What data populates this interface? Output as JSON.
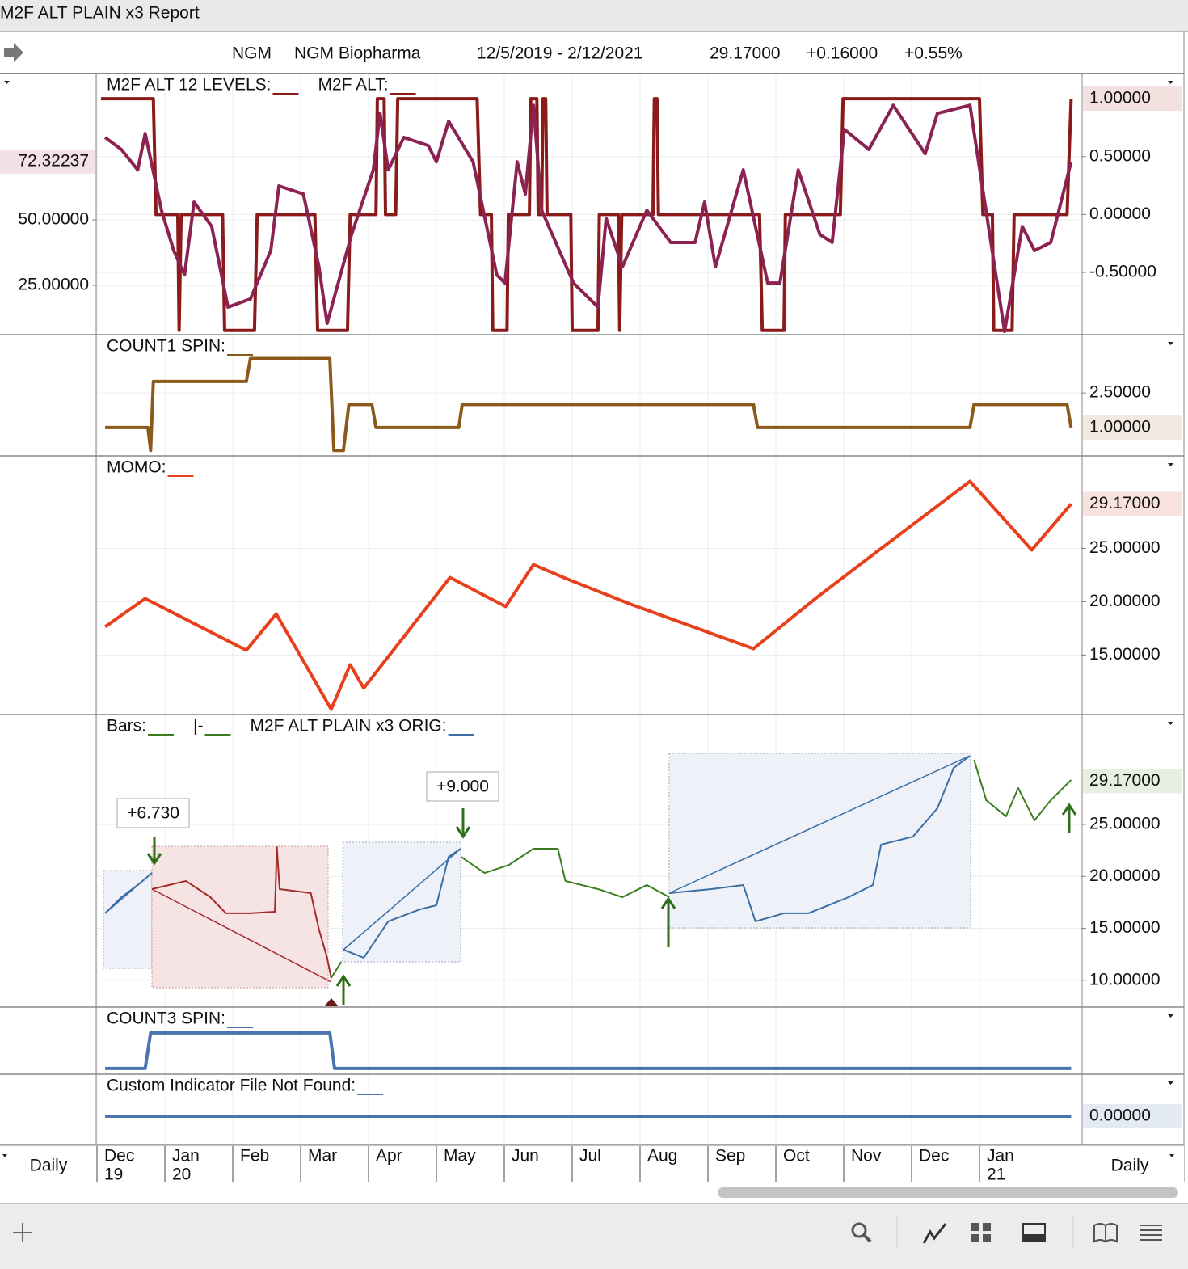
{
  "window": {
    "title": "M2F ALT PLAIN x3 Report"
  },
  "header": {
    "symbol": "NGM",
    "name": "NGM Biopharma",
    "range": "12/5/2019 - 2/12/2021",
    "last": "29.17000",
    "change": "+0.16000",
    "change_pct": "+0.55%"
  },
  "xaxis": {
    "xlim": [
      0,
      14.5
    ],
    "xticks": [
      {
        "value": 0,
        "label": "Dec",
        "year": "19"
      },
      {
        "value": 1,
        "label": "Jan",
        "year": "20"
      },
      {
        "value": 2,
        "label": "Feb"
      },
      {
        "value": 3,
        "label": "Mar"
      },
      {
        "value": 4,
        "label": "Apr"
      },
      {
        "value": 5,
        "label": "May"
      },
      {
        "value": 6,
        "label": "Jun"
      },
      {
        "value": 7,
        "label": "Jul"
      },
      {
        "value": 8,
        "label": "Aug"
      },
      {
        "value": 9,
        "label": "Sep"
      },
      {
        "value": 10,
        "label": "Oct"
      },
      {
        "value": 11,
        "label": "Nov"
      },
      {
        "value": 12,
        "label": "Dec"
      },
      {
        "value": 13,
        "label": "Jan",
        "year": "21"
      }
    ],
    "period_left": "Daily",
    "period_right": "Daily"
  },
  "panels": [
    {
      "labels": [
        {
          "text": "M2F ALT 12 LEVELS:",
          "color": "#8b1a1a"
        },
        {
          "text": "M2F ALT:",
          "color": "#8b1a1a"
        }
      ],
      "ylim": [
        -1.03,
        1.21
      ],
      "yticks": [
        {
          "value": 0.5,
          "label": "0.50000"
        },
        {
          "value": 0,
          "label": "0.00000"
        },
        {
          "value": -0.5,
          "label": "-0.50000"
        }
      ],
      "marker": {
        "value": 1,
        "label": "1.00000",
        "color": "#8b1a1a",
        "background": "#f3e1df"
      },
      "ylim_left": [
        6.5,
        105.6
      ],
      "yticks_left": [
        {
          "value": 50,
          "label": "50.00000"
        },
        {
          "value": 25,
          "label": "25.00000"
        }
      ],
      "marker_left": {
        "value": 72.32237,
        "label": "72.32237",
        "color": "#8b2252",
        "background": "#f3e1e6"
      },
      "series": [
        {
          "color": "#8b1a1a",
          "axis": "right",
          "x": [
            0.06,
            0.83,
            0.87,
            1.19,
            1.21,
            1.24,
            1.85,
            1.88,
            2.32,
            2.36,
            3.21,
            3.25,
            3.69,
            3.73,
            4.11,
            4.13,
            4.23,
            4.25,
            4.4,
            4.43,
            5.6,
            5.65,
            5.81,
            5.83,
            6.04,
            6.06,
            6.37,
            6.39,
            6.48,
            6.5,
            6.55,
            6.57,
            6.61,
            6.63,
            6.98,
            7.0,
            7.38,
            7.4,
            7.68,
            7.7,
            7.73,
            8.19,
            8.21,
            8.25,
            8.27,
            9.76,
            9.8,
            10.12,
            10.14,
            10.95,
            10.99,
            13.0,
            13.05,
            13.19,
            13.21,
            13.48,
            13.51,
            14.29,
            14.35
          ],
          "values": [
            1,
            1,
            0,
            0,
            -1,
            0,
            0,
            -1,
            -1,
            0,
            0,
            -1,
            -1,
            0,
            0,
            1,
            1,
            0,
            0,
            1,
            1,
            0,
            0,
            -1,
            -1,
            0,
            0,
            1,
            1,
            0,
            0,
            1,
            1,
            0,
            0,
            -1,
            -1,
            0,
            0,
            -1,
            0,
            0,
            1,
            1,
            0,
            0,
            -1,
            -1,
            0,
            0,
            1,
            1,
            0,
            0,
            -1,
            -1,
            0,
            0,
            1
          ]
        },
        {
          "color": "#8b2252",
          "axis": "left",
          "x": [
            0.12,
            0.36,
            0.6,
            0.71,
            0.95,
            1.13,
            1.29,
            1.43,
            1.69,
            1.93,
            2.26,
            2.56,
            2.68,
            3.04,
            3.27,
            3.39,
            3.75,
            4.07,
            4.17,
            4.29,
            4.52,
            4.88,
            5.0,
            5.18,
            5.54,
            5.89,
            6.01,
            6.19,
            6.31,
            6.43,
            6.55,
            7.02,
            7.38,
            7.5,
            7.74,
            8.1,
            8.45,
            8.81,
            8.95,
            9.11,
            9.52,
            9.88,
            10.06,
            10.33,
            10.65,
            10.83,
            11.01,
            11.37,
            11.73,
            12.2,
            12.38,
            12.86,
            13.04,
            13.37,
            13.63,
            13.81,
            14.05,
            14.35
          ],
          "values": [
            81.5,
            76.9,
            69.1,
            83.0,
            53.7,
            38.3,
            29.0,
            56.8,
            47.5,
            16.7,
            19.8,
            38.3,
            63.0,
            59.9,
            32.1,
            10.5,
            44.4,
            69.1,
            90.7,
            69.1,
            81.5,
            78.4,
            72.2,
            87.7,
            72.2,
            29.0,
            25.9,
            72.2,
            59.9,
            93.8,
            53.7,
            25.9,
            16.7,
            50.6,
            32.1,
            53.7,
            41.4,
            41.4,
            56.8,
            32.1,
            69.1,
            25.9,
            25.9,
            69.1,
            44.4,
            41.4,
            84.6,
            76.9,
            93.8,
            75.3,
            90.7,
            93.8,
            63.0,
            7.4,
            47.5,
            38.3,
            41.4,
            72.2
          ]
        }
      ]
    },
    {
      "labels": [
        {
          "text": "COUNT1 SPIN:",
          "color": "#8b5a1a"
        }
      ],
      "ylim": [
        -0.2,
        5
      ],
      "yticks": [
        {
          "value": 2.5,
          "label": "2.50000"
        }
      ],
      "marker": {
        "value": 1,
        "label": "1.00000",
        "color": "#8b5a1a",
        "background": "#f2e9e0"
      },
      "series": [
        {
          "color": "#8b5a1a",
          "axis": "right",
          "x": [
            0.12,
            0.75,
            0.79,
            0.83,
            2.2,
            2.26,
            3.43,
            3.49,
            3.63,
            3.71,
            4.05,
            4.11,
            5.33,
            5.38,
            9.67,
            9.73,
            12.86,
            12.92,
            14.29,
            14.35
          ],
          "values": [
            1,
            1,
            0,
            3,
            3,
            4,
            4,
            0,
            0,
            2,
            2,
            1,
            1,
            2,
            2,
            1,
            1,
            2,
            2,
            1
          ]
        }
      ]
    },
    {
      "labels": [
        {
          "text": "MOMO:",
          "color": "#e8401c"
        }
      ],
      "ylim": [
        9.5,
        33.6
      ],
      "yticks": [
        {
          "value": 25,
          "label": "25.00000"
        },
        {
          "value": 20,
          "label": "20.00000"
        },
        {
          "value": 15,
          "label": "15.00000"
        }
      ],
      "marker": {
        "value": 29.17,
        "label": "29.17000",
        "color": "#d8391a",
        "background": "#f8e2de"
      },
      "series": [
        {
          "color": "#e8401c",
          "axis": "right",
          "x": [
            0.12,
            0.71,
            2.2,
            2.64,
            3.45,
            3.73,
            3.93,
            5.2,
            6.02,
            6.43,
            6.9,
            7.86,
            9.67,
            10.6,
            11.49,
            12.86,
            13.77,
            14.35
          ],
          "values": [
            17.65,
            20.3,
            15.45,
            18.86,
            9.92,
            14.09,
            11.9,
            22.27,
            19.55,
            23.48,
            22.2,
            19.77,
            15.6,
            20.38,
            24.7,
            31.29,
            24.85,
            29.17
          ]
        }
      ]
    },
    {
      "labels": [
        {
          "text": "Bars:",
          "color": "#3a7d1e"
        },
        {
          "text": "|-",
          "color": "#3a7d1e"
        },
        {
          "text": "M2F ALT PLAIN x3 ORIG:",
          "color": "#3a6ea5"
        }
      ],
      "ylim": [
        7.5,
        35.5
      ],
      "yticks": [
        {
          "value": 25,
          "label": "25.00000"
        },
        {
          "value": 20,
          "label": "20.00000"
        },
        {
          "value": 15,
          "label": "15.00000"
        },
        {
          "value": 10,
          "label": "10.00000"
        }
      ],
      "marker": {
        "value": 29.17,
        "label": "29.17000",
        "color": "#3a7d1e",
        "background": "#e6efe0"
      },
      "annotations": [
        {
          "text": "+6.730"
        },
        {
          "text": "+9.000"
        }
      ],
      "series": [
        {
          "color": "#3a6ea5",
          "axis": "right",
          "x": [
            0.12,
            0.36,
            0.6,
            0.81
          ],
          "values": [
            16.45,
            18.0,
            19.17,
            20.33
          ]
        },
        {
          "color": "#a52a2a",
          "axis": "right",
          "x": [
            0.81,
            1.31,
            1.67,
            1.9,
            2.26,
            2.62,
            2.65,
            2.69,
            3.15,
            3.27,
            3.39,
            3.45
          ],
          "values": [
            18.78,
            19.56,
            18.0,
            16.45,
            16.45,
            16.6,
            22.82,
            18.78,
            18.39,
            14.89,
            12.17,
            10.23
          ]
        },
        {
          "color": "#3a7d1e",
          "axis": "right",
          "x": [
            3.45,
            3.6
          ],
          "values": [
            10.23,
            11.78
          ]
        },
        {
          "color": "#3a6ea5",
          "axis": "right",
          "x": [
            3.63,
            3.93,
            4.29,
            4.76,
            5.0,
            5.18,
            5.36
          ],
          "values": [
            12.95,
            12.17,
            15.67,
            16.84,
            17.22,
            21.89,
            22.67
          ]
        },
        {
          "color": "#3a7d1e",
          "axis": "right",
          "x": [
            5.36,
            5.71,
            6.07,
            6.43,
            6.79,
            6.9,
            7.38,
            7.74,
            8.1,
            8.43
          ],
          "values": [
            21.89,
            20.33,
            21.11,
            22.67,
            22.67,
            19.56,
            18.78,
            18.0,
            19.17,
            18.0
          ]
        },
        {
          "color": "#3a6ea5",
          "axis": "right",
          "x": [
            8.43,
            9.05,
            9.52,
            9.7,
            10.12,
            10.48,
            11.07,
            11.43,
            11.55,
            12.02,
            12.38,
            12.62,
            12.86
          ],
          "values": [
            18.39,
            18.78,
            19.17,
            15.67,
            16.45,
            16.45,
            18.0,
            19.17,
            23.06,
            23.83,
            26.56,
            30.44,
            31.61
          ]
        },
        {
          "color": "#3a7d1e",
          "axis": "right",
          "x": [
            12.92,
            13.1,
            13.39,
            13.57,
            13.81,
            14.05,
            14.35
          ],
          "values": [
            31.22,
            27.33,
            25.78,
            28.5,
            25.39,
            27.33,
            29.28
          ]
        }
      ]
    },
    {
      "labels": [
        {
          "text": "COUNT3 SPIN:",
          "color": "#4a74b0"
        }
      ],
      "ylim": [
        -0.14,
        1.7
      ],
      "yticks": [],
      "series": [
        {
          "color": "#4a74b0",
          "axis": "right",
          "x": [
            0.12,
            0.71,
            0.79,
            3.43,
            3.5,
            14.35
          ],
          "values": [
            0,
            0,
            1,
            1,
            0,
            0
          ]
        }
      ]
    },
    {
      "labels": [
        {
          "text": "Custom Indicator File Not Found:",
          "color": "#4a74b0"
        }
      ],
      "ylim": [
        -0.68,
        1.02
      ],
      "yticks": [],
      "marker": {
        "value": 0,
        "label": "0.00000",
        "color": "#4a74b0",
        "background": "#e3eaf3"
      },
      "series": [
        {
          "color": "#4a74b0",
          "axis": "right",
          "x": [
            0.12,
            14.35
          ],
          "values": [
            0,
            0
          ]
        }
      ]
    }
  ]
}
